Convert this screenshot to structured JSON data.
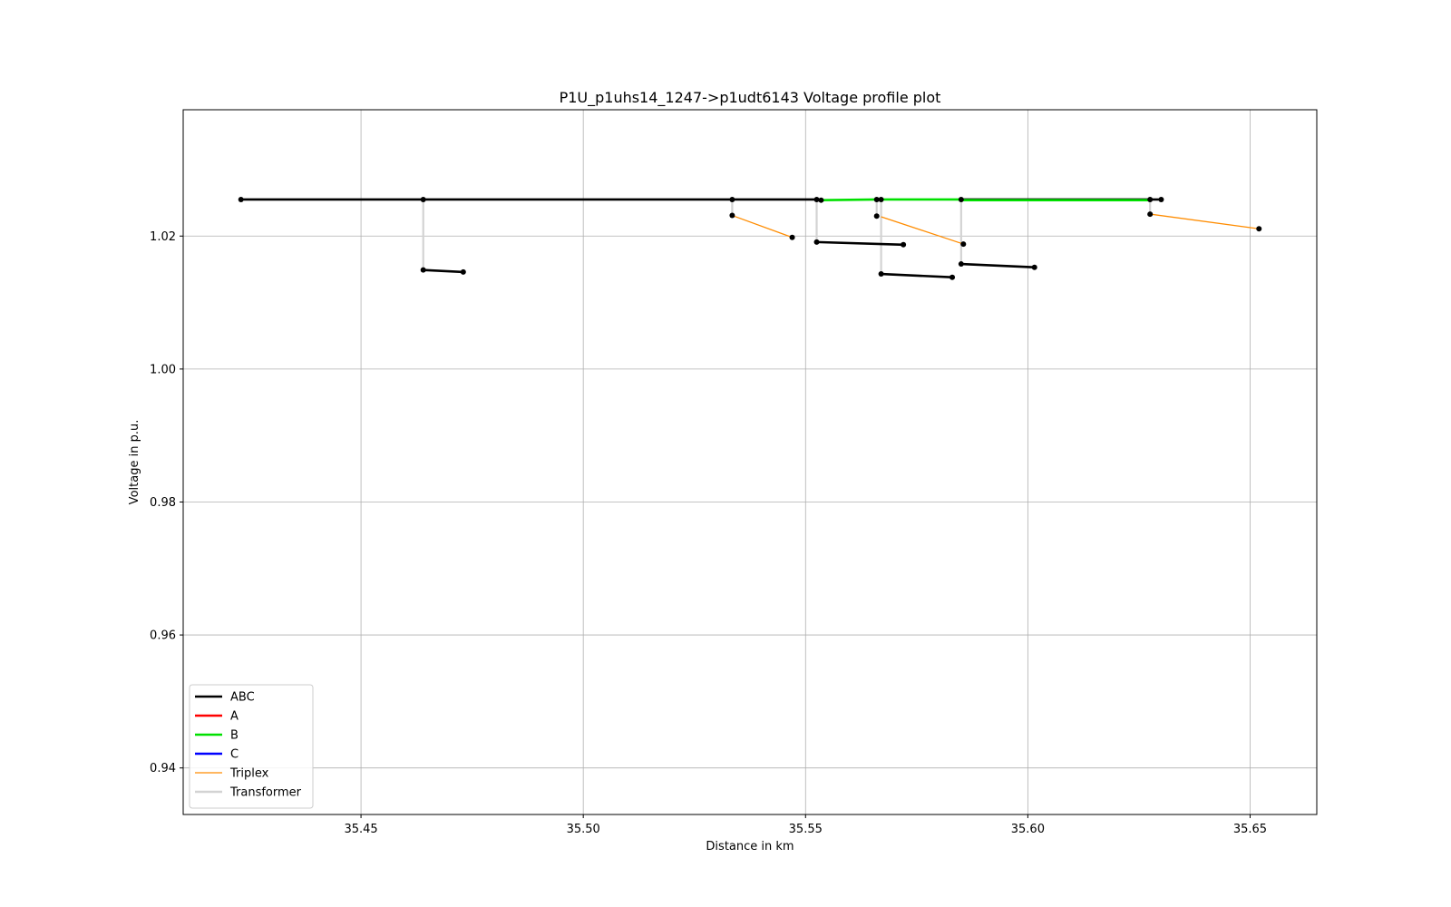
{
  "chart_data": {
    "type": "line",
    "title": "P1U_p1uhs14_1247->p1udt6143 Voltage profile plot",
    "xlabel": "Distance in km",
    "ylabel": "Voltage in p.u.",
    "xlim": [
      35.41,
      35.665
    ],
    "ylim": [
      0.933,
      1.039
    ],
    "xticks": [
      35.45,
      35.5,
      35.55,
      35.6,
      35.65
    ],
    "xtick_labels": [
      "35.45",
      "35.50",
      "35.55",
      "35.60",
      "35.65"
    ],
    "yticks": [
      0.94,
      0.96,
      0.98,
      1.0,
      1.02
    ],
    "ytick_labels": [
      "0.94",
      "0.96",
      "0.98",
      "1.00",
      "1.02"
    ],
    "grid": true,
    "legend_position": "lower-left",
    "legend": [
      {
        "label": "ABC",
        "color": "#000000"
      },
      {
        "label": "A",
        "color": "#ff0000"
      },
      {
        "label": "B",
        "color": "#00e000"
      },
      {
        "label": "C",
        "color": "#0000ff"
      },
      {
        "label": "Triplex",
        "color": "#ff8c00"
      },
      {
        "label": "Transformer",
        "color": "#d3d3d3"
      }
    ],
    "segments": [
      {
        "kind": "ABC",
        "x": [
          35.423,
          35.464
        ],
        "y": [
          1.0255,
          1.0255
        ]
      },
      {
        "kind": "ABC",
        "x": [
          35.464,
          35.5335
        ],
        "y": [
          1.0255,
          1.0255
        ]
      },
      {
        "kind": "ABC",
        "x": [
          35.5335,
          35.5525
        ],
        "y": [
          1.0255,
          1.0255
        ]
      },
      {
        "kind": "ABC",
        "x": [
          35.5525,
          35.5535
        ],
        "y": [
          1.0255,
          1.0254
        ]
      },
      {
        "kind": "ABC",
        "x": [
          35.566,
          35.567
        ],
        "y": [
          1.0255,
          1.0255
        ]
      },
      {
        "kind": "ABC",
        "x": [
          35.585,
          35.6275
        ],
        "y": [
          1.0255,
          1.0255
        ]
      },
      {
        "kind": "ABC",
        "x": [
          35.6275,
          35.63
        ],
        "y": [
          1.0255,
          1.0255
        ]
      },
      {
        "kind": "B",
        "x": [
          35.5535,
          35.566
        ],
        "y": [
          1.0254,
          1.0255
        ]
      },
      {
        "kind": "B",
        "x": [
          35.567,
          35.585
        ],
        "y": [
          1.0255,
          1.0255
        ]
      },
      {
        "kind": "B",
        "x": [
          35.585,
          35.6275
        ],
        "y": [
          1.0254,
          1.0254
        ]
      },
      {
        "kind": "Transformer",
        "x": [
          35.464,
          35.464
        ],
        "y": [
          1.0255,
          1.0149
        ]
      },
      {
        "kind": "Transformer",
        "x": [
          35.5335,
          35.5335
        ],
        "y": [
          1.0255,
          1.0231
        ]
      },
      {
        "kind": "Transformer",
        "x": [
          35.5525,
          35.5525
        ],
        "y": [
          1.0255,
          1.0191
        ]
      },
      {
        "kind": "Transformer",
        "x": [
          35.566,
          35.566
        ],
        "y": [
          1.0255,
          1.023
        ]
      },
      {
        "kind": "Transformer",
        "x": [
          35.567,
          35.567
        ],
        "y": [
          1.0255,
          1.0143
        ]
      },
      {
        "kind": "Transformer",
        "x": [
          35.585,
          35.585
        ],
        "y": [
          1.0255,
          1.0158
        ]
      },
      {
        "kind": "Transformer",
        "x": [
          35.6275,
          35.6275
        ],
        "y": [
          1.0255,
          1.0233
        ]
      },
      {
        "kind": "ABC",
        "x": [
          35.464,
          35.473
        ],
        "y": [
          1.0149,
          1.0146
        ]
      },
      {
        "kind": "ABC",
        "x": [
          35.5525,
          35.572
        ],
        "y": [
          1.0191,
          1.0187
        ]
      },
      {
        "kind": "ABC",
        "x": [
          35.567,
          35.583
        ],
        "y": [
          1.0143,
          1.0138
        ]
      },
      {
        "kind": "ABC",
        "x": [
          35.585,
          35.6015
        ],
        "y": [
          1.0158,
          1.0153
        ]
      },
      {
        "kind": "Triplex",
        "x": [
          35.5335,
          35.547
        ],
        "y": [
          1.0231,
          1.0198
        ]
      },
      {
        "kind": "Triplex",
        "x": [
          35.567,
          35.5855
        ],
        "y": [
          1.0229,
          1.0188
        ]
      },
      {
        "kind": "Triplex",
        "x": [
          35.6275,
          35.652
        ],
        "y": [
          1.0233,
          1.0211
        ]
      }
    ],
    "points": [
      {
        "x": 35.423,
        "y": 1.0255
      },
      {
        "x": 35.464,
        "y": 1.0255
      },
      {
        "x": 35.5335,
        "y": 1.0255
      },
      {
        "x": 35.5525,
        "y": 1.0255
      },
      {
        "x": 35.5535,
        "y": 1.0254
      },
      {
        "x": 35.566,
        "y": 1.0255
      },
      {
        "x": 35.567,
        "y": 1.0255
      },
      {
        "x": 35.585,
        "y": 1.0255
      },
      {
        "x": 35.6275,
        "y": 1.0255
      },
      {
        "x": 35.63,
        "y": 1.0255
      },
      {
        "x": 35.464,
        "y": 1.0149
      },
      {
        "x": 35.473,
        "y": 1.0146
      },
      {
        "x": 35.5335,
        "y": 1.0231
      },
      {
        "x": 35.547,
        "y": 1.0198
      },
      {
        "x": 35.5525,
        "y": 1.0191
      },
      {
        "x": 35.572,
        "y": 1.0187
      },
      {
        "x": 35.566,
        "y": 1.023
      },
      {
        "x": 35.567,
        "y": 1.0143
      },
      {
        "x": 35.583,
        "y": 1.0138
      },
      {
        "x": 35.5855,
        "y": 1.0188
      },
      {
        "x": 35.585,
        "y": 1.0158
      },
      {
        "x": 35.6015,
        "y": 1.0153
      },
      {
        "x": 35.6275,
        "y": 1.0233
      },
      {
        "x": 35.652,
        "y": 1.0211
      }
    ]
  }
}
